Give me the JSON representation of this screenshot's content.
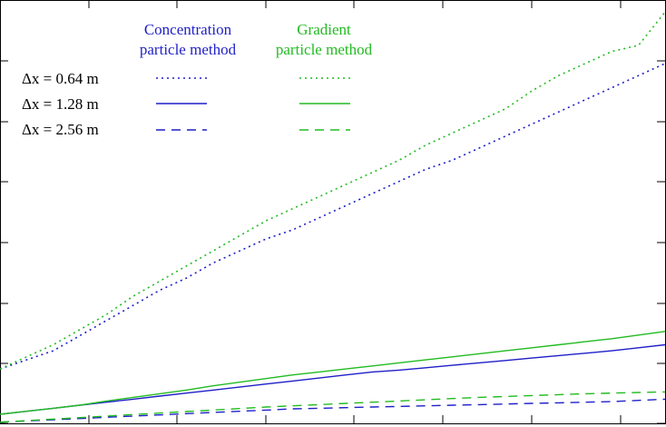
{
  "chart_data": {
    "type": "line",
    "title": "",
    "xlabel": "",
    "ylabel": "",
    "xlim": [
      0,
      100
    ],
    "ylim": [
      0,
      70
    ],
    "grid": false,
    "legend": {
      "placement": "top-left",
      "group_headers": [
        {
          "line1": "Concentration",
          "line2": "particle method",
          "color": "#1f1fc8"
        },
        {
          "line1": "Gradient",
          "line2": "particle method",
          "color": "#22bb22"
        }
      ],
      "row_labels": [
        "Δx = 0.64 m",
        "Δx = 1.28 m",
        "Δx = 2.56 m"
      ]
    },
    "x": [
      0,
      4,
      8,
      12,
      16,
      20,
      24,
      28,
      32,
      36,
      40,
      44,
      48,
      52,
      56,
      60,
      64,
      68,
      72,
      76,
      80,
      84,
      88,
      92,
      96,
      100
    ],
    "series": [
      {
        "method": "concentration",
        "dx": "0.64",
        "color": "#1f1fc8",
        "dash": "dotted",
        "values": [
          9.0,
          10.5,
          12.0,
          14.5,
          17.0,
          19.5,
          22.0,
          24.0,
          26.5,
          28.5,
          30.5,
          32.0,
          34.0,
          36.0,
          38.0,
          40.0,
          42.0,
          43.5,
          45.5,
          47.5,
          49.5,
          51.5,
          53.5,
          55.5,
          57.5,
          59.5
        ]
      },
      {
        "method": "gradient",
        "dx": "0.64",
        "color": "#22bb22",
        "dash": "dotted",
        "values": [
          9.0,
          11.0,
          13.0,
          15.5,
          18.0,
          21.0,
          23.5,
          26.0,
          28.5,
          31.0,
          33.5,
          35.5,
          37.5,
          39.5,
          41.5,
          43.5,
          46.0,
          48.0,
          50.0,
          52.0,
          55.0,
          57.5,
          59.5,
          61.5,
          62.5,
          68.0
        ]
      },
      {
        "method": "concentration",
        "dx": "1.28",
        "color": "#1f1fc8",
        "dash": "solid",
        "values": [
          1.5,
          2.0,
          2.5,
          3.0,
          3.5,
          4.0,
          4.5,
          5.0,
          5.5,
          6.0,
          6.5,
          7.0,
          7.5,
          8.0,
          8.5,
          8.8,
          9.2,
          9.6,
          10.0,
          10.4,
          10.8,
          11.2,
          11.6,
          12.0,
          12.5,
          13.0
        ]
      },
      {
        "method": "gradient",
        "dx": "1.28",
        "color": "#22bb22",
        "dash": "solid",
        "values": [
          1.5,
          2.0,
          2.5,
          3.0,
          3.7,
          4.3,
          4.9,
          5.5,
          6.2,
          6.8,
          7.4,
          8.0,
          8.5,
          9.0,
          9.5,
          10.0,
          10.5,
          11.0,
          11.5,
          12.0,
          12.5,
          13.0,
          13.5,
          14.0,
          14.6,
          15.2
        ]
      },
      {
        "method": "concentration",
        "dx": "2.56",
        "color": "#1f1fc8",
        "dash": "dashed",
        "values": [
          0.2,
          0.4,
          0.6,
          0.8,
          1.0,
          1.2,
          1.4,
          1.6,
          1.8,
          2.0,
          2.2,
          2.4,
          2.5,
          2.6,
          2.7,
          2.8,
          2.9,
          3.0,
          3.1,
          3.2,
          3.3,
          3.4,
          3.5,
          3.6,
          3.8,
          4.0
        ]
      },
      {
        "method": "gradient",
        "dx": "2.56",
        "color": "#22bb22",
        "dash": "dashed",
        "values": [
          0.2,
          0.45,
          0.7,
          0.95,
          1.2,
          1.45,
          1.7,
          1.95,
          2.2,
          2.45,
          2.7,
          2.9,
          3.1,
          3.3,
          3.5,
          3.7,
          3.9,
          4.1,
          4.3,
          4.45,
          4.6,
          4.75,
          4.9,
          5.0,
          5.1,
          5.2
        ]
      }
    ]
  }
}
